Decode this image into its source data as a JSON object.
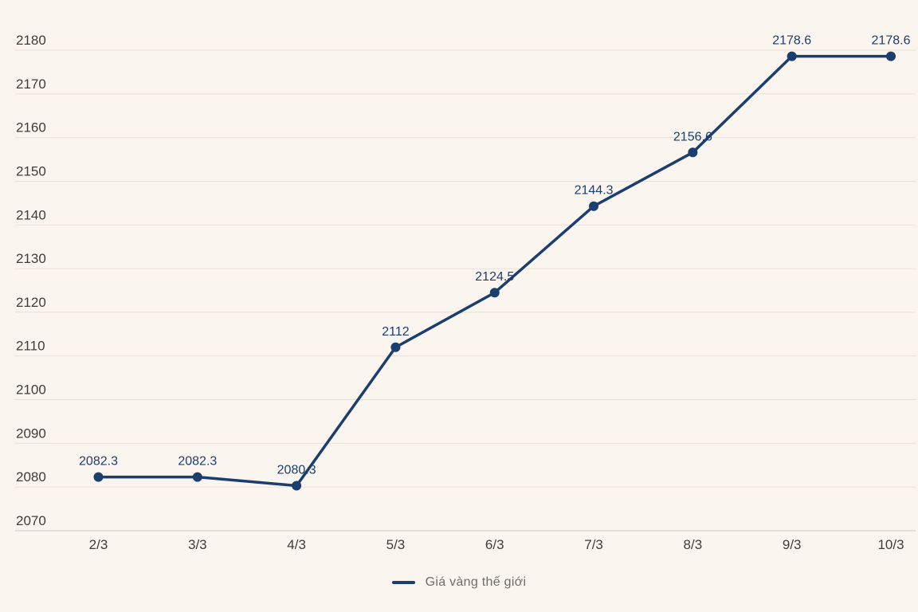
{
  "chart_data": {
    "type": "line",
    "categories": [
      "2/3",
      "3/3",
      "4/3",
      "5/3",
      "6/3",
      "7/3",
      "8/3",
      "9/3",
      "10/3"
    ],
    "series": [
      {
        "name": "Giá vàng thế giới",
        "values": [
          2082.3,
          2082.3,
          2080.3,
          2112,
          2124.5,
          2144.3,
          2156.6,
          2178.6,
          2178.6
        ]
      }
    ],
    "title": "",
    "xlabel": "",
    "ylabel": "",
    "ylim": [
      2070,
      2180
    ],
    "ytick_step": 10,
    "yticks": [
      2070,
      2080,
      2090,
      2100,
      2110,
      2120,
      2130,
      2140,
      2150,
      2160,
      2170,
      2180
    ],
    "grid": "horizontal",
    "data_labels_shown": true,
    "legend_position": "bottom-center",
    "colors": {
      "background": "#fbf5ef",
      "gridline": "#e7e1da",
      "axis_line": "#cdc7c0",
      "series_line": "#1c3e6e",
      "data_point": "#1c3e6e",
      "value_label_text": "#1c3e6e",
      "axis_label_text": "#403c39",
      "legend_text": "#6f6b67"
    }
  }
}
